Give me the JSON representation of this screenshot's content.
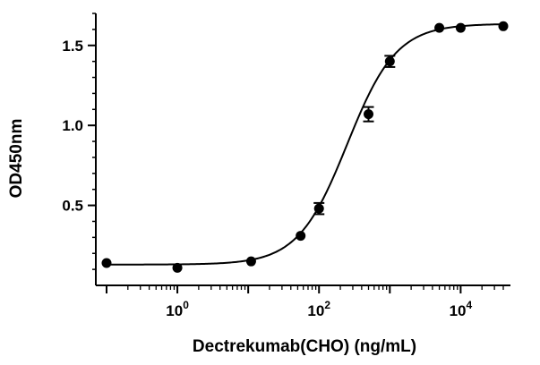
{
  "chart_data": {
    "type": "scatter",
    "xlabel": "Dectrekumab(CHO) (ng/mL)",
    "ylabel": "OD450nm",
    "x_scale": "log10",
    "xlim": [
      0.1,
      40000
    ],
    "ylim": [
      0,
      1.7
    ],
    "x_ticks": [
      {
        "base": "10",
        "exp": "0",
        "value": 1
      },
      {
        "base": "10",
        "exp": "2",
        "value": 100
      },
      {
        "base": "10",
        "exp": "4",
        "value": 10000
      }
    ],
    "y_ticks": [
      {
        "label": "0.5",
        "value": 0.5
      },
      {
        "label": "1.0",
        "value": 1.0
      },
      {
        "label": "1.5",
        "value": 1.5
      }
    ],
    "grid": false,
    "legend": "none",
    "marker_color": "#000000",
    "series": [
      {
        "points": [
          {
            "x": 0.1,
            "y": 0.14,
            "err": 0
          },
          {
            "x": 1,
            "y": 0.11,
            "err": 0
          },
          {
            "x": 11,
            "y": 0.15,
            "err": 0
          },
          {
            "x": 55,
            "y": 0.31,
            "err": 0
          },
          {
            "x": 100,
            "y": 0.48,
            "err": 0.035
          },
          {
            "x": 500,
            "y": 1.07,
            "err": 0.045
          },
          {
            "x": 1000,
            "y": 1.4,
            "err": 0.035
          },
          {
            "x": 5000,
            "y": 1.61,
            "err": 0
          },
          {
            "x": 10000,
            "y": 1.61,
            "err": 0
          },
          {
            "x": 40000,
            "y": 1.62,
            "err": 0
          }
        ]
      }
    ],
    "fit_curve": {
      "model": "4PL",
      "bottom": 0.13,
      "top": 1.635,
      "ec50": 250,
      "hill": 1.25
    }
  }
}
